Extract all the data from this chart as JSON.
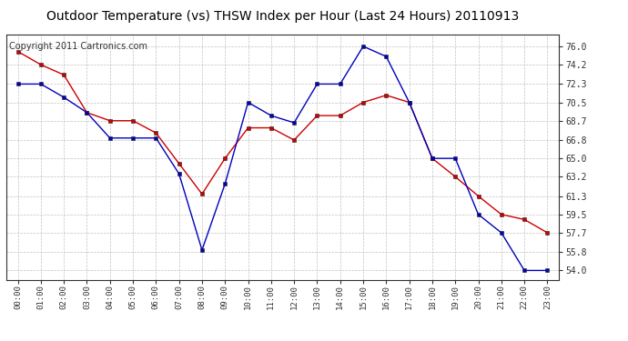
{
  "title": "Outdoor Temperature (vs) THSW Index per Hour (Last 24 Hours) 20110913",
  "copyright": "Copyright 2011 Cartronics.com",
  "hours": [
    "00:00",
    "01:00",
    "02:00",
    "03:00",
    "04:00",
    "05:00",
    "06:00",
    "07:00",
    "08:00",
    "09:00",
    "10:00",
    "11:00",
    "12:00",
    "13:00",
    "14:00",
    "15:00",
    "16:00",
    "17:00",
    "18:00",
    "19:00",
    "20:00",
    "21:00",
    "22:00",
    "23:00"
  ],
  "temp_red": [
    75.5,
    74.2,
    73.2,
    69.5,
    68.7,
    68.7,
    67.5,
    64.5,
    61.5,
    65.0,
    68.0,
    68.0,
    66.8,
    69.2,
    69.2,
    70.5,
    71.2,
    70.5,
    65.0,
    63.2,
    61.3,
    59.5,
    59.0,
    57.7
  ],
  "thsw_blue": [
    72.3,
    72.3,
    71.0,
    69.5,
    67.0,
    67.0,
    67.0,
    63.5,
    56.0,
    62.5,
    70.5,
    69.2,
    68.5,
    72.3,
    72.3,
    76.0,
    75.0,
    70.5,
    65.0,
    65.0,
    59.5,
    57.7,
    54.0,
    54.0
  ],
  "ylim_min": 53.1,
  "ylim_max": 77.2,
  "yticks": [
    54.0,
    55.8,
    57.7,
    59.5,
    61.3,
    63.2,
    65.0,
    66.8,
    68.7,
    70.5,
    72.3,
    74.2,
    76.0
  ],
  "red_color": "#cc0000",
  "blue_color": "#0000bb",
  "grid_color": "#bbbbbb",
  "bg_color": "#ffffff",
  "title_fontsize": 10,
  "copyright_fontsize": 7
}
